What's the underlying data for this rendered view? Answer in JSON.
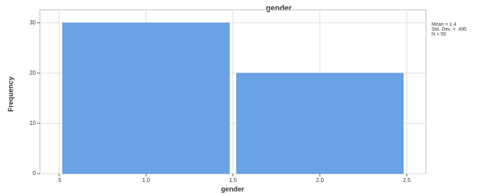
{
  "chart_data": {
    "type": "histogram",
    "title": "gender",
    "x_label": "gender",
    "y_label": "Frequency",
    "bins": [
      0.5,
      1.5,
      2.5
    ],
    "values": [
      30,
      20
    ],
    "color": "#6aa2e4",
    "xlim": [
      0.39,
      2.61
    ],
    "xticks": [
      {
        "value": 0.5,
        "label": ".5"
      },
      {
        "value": 1,
        "label": "1.0"
      },
      1.5,
      {
        "value": 2,
        "label": "2.0"
      },
      2.5
    ],
    "ylim": [
      0,
      32.6
    ],
    "yticks": [
      0,
      10,
      20,
      30
    ],
    "grid": true,
    "stats": [
      "Mean = 1.4",
      "Std. Dev. = .495",
      "N = 50"
    ]
  }
}
